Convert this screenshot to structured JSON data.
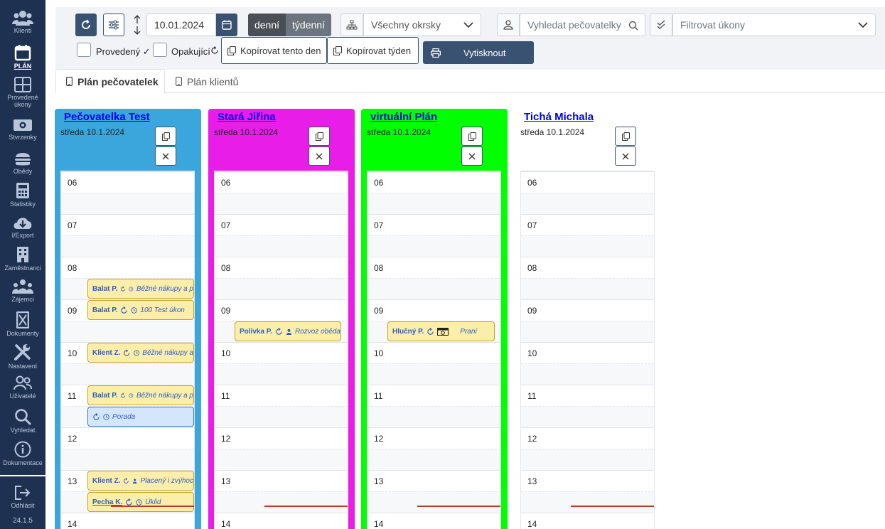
{
  "sidebar": {
    "items": [
      {
        "label": "Klienti",
        "icon": "users-icon"
      },
      {
        "label": "PLÁN",
        "icon": "calendar-icon",
        "active": true
      },
      {
        "label": "Provedené úkony",
        "icon": "grid-icon"
      },
      {
        "label": "Stvrzenky",
        "icon": "money-icon"
      },
      {
        "label": "Obědy",
        "icon": "burger-icon"
      },
      {
        "label": "Statistiky",
        "icon": "calculator-icon"
      },
      {
        "label": "I/Export",
        "icon": "cloud-download-icon"
      },
      {
        "label": "Zaměstnanci",
        "icon": "building-icon"
      },
      {
        "label": "Zájemci",
        "icon": "group-icon"
      },
      {
        "label": "Dokumenty",
        "icon": "document-icon"
      },
      {
        "label": "Nastavení",
        "icon": "tools-icon"
      },
      {
        "label": "Uživatelé",
        "icon": "user-group-icon"
      },
      {
        "label": "Vyhledat",
        "icon": "search-icon"
      },
      {
        "label": "Dokumentace",
        "icon": "info-icon"
      }
    ],
    "logout": "Odhlásit",
    "version": "24.1.5"
  },
  "toolbar": {
    "date": "10.01.2024",
    "view_day": "denní",
    "view_week": "týdenní",
    "district": "Všechny okrsky",
    "search_placeholder": "Vyhledat pečovatelky",
    "filter_placeholder": "Filtrovat úkony",
    "chk_done": "Provedený ✓",
    "chk_repeat": "Opakující",
    "copy_day": "Kopírovat tento den",
    "copy_week": "Kopírovat týden",
    "print": "Vytisknout"
  },
  "tabs": [
    "Plán pečovatelek",
    "Plán klientů"
  ],
  "hours": [
    "06",
    "07",
    "08",
    "09",
    "10",
    "11",
    "12",
    "13",
    "14"
  ],
  "columns": [
    {
      "name": "Pečovatelka Test",
      "date": "středa 10.1.2024",
      "color": "#3aa6dc",
      "events": [
        {
          "client": "Balat P.",
          "task": "Běžné nákupy a p",
          "start": "08:30",
          "blue": false
        },
        {
          "client": "Balat P.",
          "task": "100 Test úkon",
          "start": "09:00",
          "blue": false
        },
        {
          "client": "Klient Z.",
          "task": "Běžné nákupy a",
          "start": "10:00",
          "blue": false
        },
        {
          "client": "Balat P.",
          "task": "Běžné nákupy a p",
          "start": "11:00",
          "blue": false
        },
        {
          "client": "",
          "task": "Porada",
          "start": "11:30",
          "blue": true
        },
        {
          "client": "Klient Z.",
          "task": "Placený i zvýhoc",
          "start": "13:00",
          "blue": false,
          "person": true
        },
        {
          "client": "Pecha K.",
          "task": "Úklid",
          "start": "13:30",
          "blue": false
        }
      ]
    },
    {
      "name": "Stará Jiřina",
      "date": "středa 10.1.2024",
      "color": "#e81de8",
      "events": [
        {
          "client": "Polívka P.",
          "task": "Rozvoz oběda",
          "start": "09:30",
          "blue": false,
          "person": true
        }
      ]
    },
    {
      "name": "virtuální Plán",
      "date": "středa 10.1.2024",
      "color": "#00ff00",
      "events": [
        {
          "client": "Hlučný P.",
          "task": "Praní",
          "start": "09:30",
          "blue": false,
          "wash": true
        }
      ]
    },
    {
      "name": "Tichá Michala",
      "date": "středa 10.1.2024",
      "color": "#ffffff",
      "events": []
    }
  ]
}
